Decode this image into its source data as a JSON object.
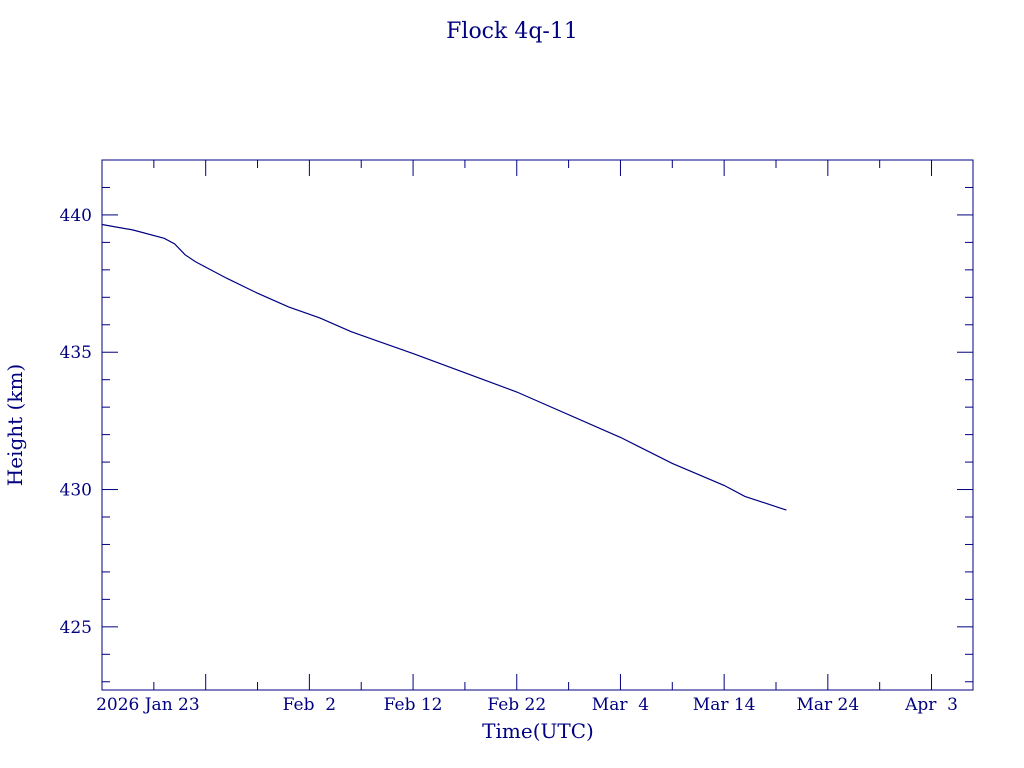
{
  "chart_data": {
    "type": "line",
    "title": "Flock 4q-11",
    "xlabel": "Time(UTC)",
    "ylabel": "Height (km)",
    "color": "#000080",
    "x_range": [
      "2026-01-13",
      "2026-04-07"
    ],
    "ylim": [
      422.7,
      442.0
    ],
    "y_ticks": [
      425,
      430,
      435,
      440
    ],
    "x_tick_labels": [
      {
        "date": "2026-01-23",
        "label": "2026 Jan 23"
      },
      {
        "date": "2026-02-02",
        "label": "Feb  2"
      },
      {
        "date": "2026-02-12",
        "label": "Feb 12"
      },
      {
        "date": "2026-02-22",
        "label": "Feb 22"
      },
      {
        "date": "2026-03-04",
        "label": "Mar  4"
      },
      {
        "date": "2026-03-14",
        "label": "Mar 14"
      },
      {
        "date": "2026-03-24",
        "label": "Mar 24"
      },
      {
        "date": "2026-04-03",
        "label": "Apr  3"
      }
    ],
    "grid": false,
    "series": [
      {
        "points": [
          [
            "2026-01-13",
            439.65
          ],
          [
            "2026-01-16",
            439.45
          ],
          [
            "2026-01-19",
            439.15
          ],
          [
            "2026-01-20",
            438.95
          ],
          [
            "2026-01-21",
            438.55
          ],
          [
            "2026-01-22",
            438.3
          ],
          [
            "2026-01-25",
            437.7
          ],
          [
            "2026-01-28",
            437.15
          ],
          [
            "2026-01-31",
            436.65
          ],
          [
            "2026-02-03",
            436.25
          ],
          [
            "2026-02-06",
            435.75
          ],
          [
            "2026-02-12",
            434.95
          ],
          [
            "2026-02-22",
            433.55
          ],
          [
            "2026-03-04",
            431.9
          ],
          [
            "2026-03-09",
            430.95
          ],
          [
            "2026-03-14",
            430.15
          ],
          [
            "2026-03-16",
            429.75
          ],
          [
            "2026-03-20",
            429.25
          ]
        ]
      }
    ]
  }
}
